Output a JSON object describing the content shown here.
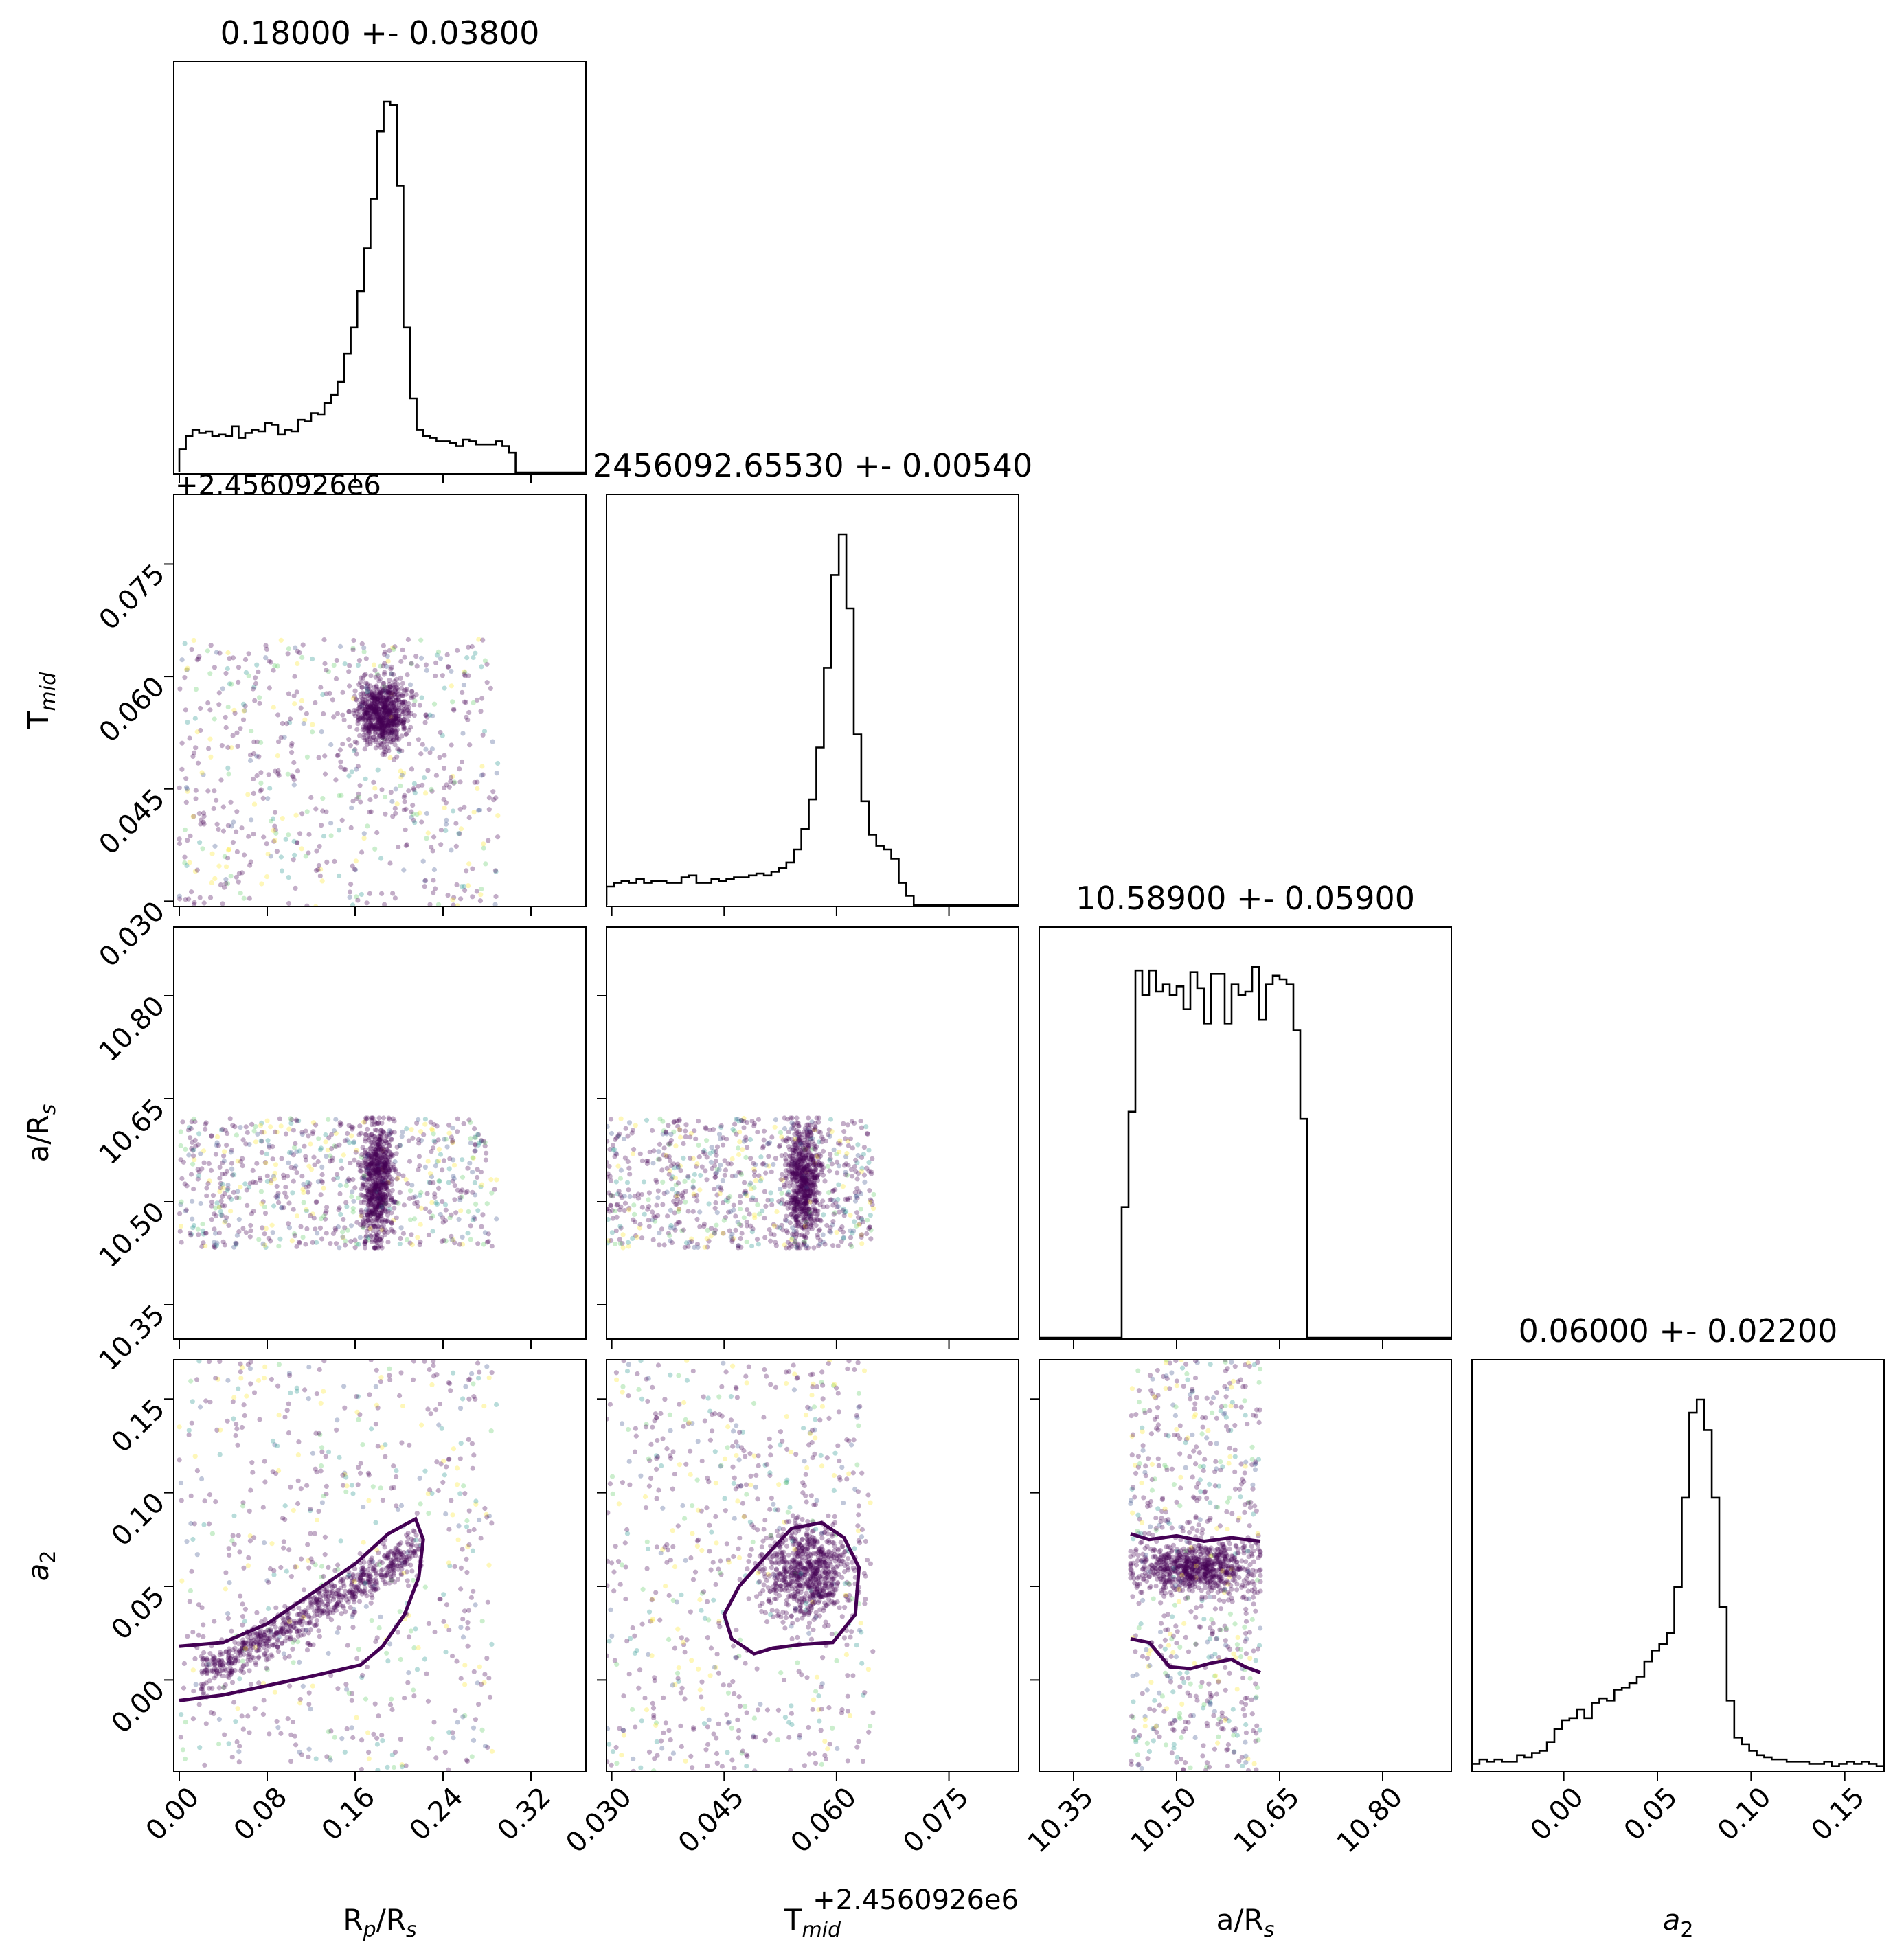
{
  "chart_data": {
    "type": "corner",
    "parameters": [
      {
        "key": "rp",
        "label_main": "R",
        "label_sub": "p",
        "label_tail": "/R",
        "label_sub2": "s",
        "range": [
          -0.005,
          0.37
        ],
        "ticks": [
          "0.00",
          "0.08",
          "0.16",
          "0.24",
          "0.32"
        ],
        "tick_values": [
          0.0,
          0.08,
          0.16,
          0.24,
          0.32
        ]
      },
      {
        "key": "tmid",
        "label_main": "T",
        "label_sub": "mid",
        "label_tail": "",
        "label_sub2": "",
        "offset_text": "+2.4560926e6",
        "range": [
          0.0293,
          0.0843
        ],
        "ticks": [
          "0.030",
          "0.045",
          "0.060",
          "0.075"
        ],
        "tick_values": [
          0.03,
          0.045,
          0.06,
          0.075
        ]
      },
      {
        "key": "ars",
        "label_main": "a/R",
        "label_sub": "s",
        "label_tail": "",
        "label_sub2": "",
        "range": [
          10.3,
          10.9
        ],
        "ticks": [
          "10.35",
          "10.50",
          "10.65",
          "10.80"
        ],
        "tick_values": [
          10.35,
          10.5,
          10.65,
          10.8
        ]
      },
      {
        "key": "a2",
        "label_main": "a",
        "label_sub": "2",
        "label_tail": "",
        "label_sub2": "",
        "italic": true,
        "range": [
          -0.049,
          0.171
        ],
        "ticks": [
          "0.00",
          "0.05",
          "0.10",
          "0.15"
        ],
        "tick_values": [
          0.0,
          0.05,
          0.1,
          0.15
        ]
      }
    ],
    "titles": [
      "0.18000 +- 0.03800",
      "2456092.65530 +- 0.00540",
      "10.58900 +- 0.05900",
      "0.06000 +- 0.02200"
    ],
    "diag_offset_text": "+2.4560926e6",
    "histograms": [
      {
        "edges_start": 0.0,
        "edges_step": 0.006,
        "heights": [
          14,
          22,
          26,
          24,
          25,
          22,
          23,
          22,
          28,
          21,
          24,
          26,
          25,
          30,
          29,
          23,
          26,
          25,
          32,
          31,
          36,
          35,
          42,
          47,
          55,
          72,
          88,
          110,
          136,
          166,
          207,
          225,
          223,
          174,
          88,
          45,
          26,
          22,
          21,
          19,
          19,
          18,
          16,
          20,
          19,
          17,
          17,
          17,
          19,
          16,
          12,
          0,
          0,
          0,
          0,
          0,
          0,
          0,
          0,
          0,
          0,
          0
        ]
      },
      {
        "edges_start": 0.0293,
        "edges_step": 0.001,
        "heights": [
          10,
          12,
          13,
          12,
          14,
          12,
          13,
          13,
          12,
          12,
          15,
          16,
          12,
          12,
          14,
          13,
          14,
          15,
          15,
          16,
          17,
          16,
          18,
          20,
          23,
          30,
          41,
          57,
          85,
          128,
          178,
          200,
          160,
          92,
          56,
          38,
          32,
          30,
          25,
          12,
          5,
          0,
          0,
          0,
          0,
          0,
          0,
          0,
          0,
          0,
          0,
          0,
          0,
          0,
          0
        ]
      },
      {
        "edges_start": 10.3,
        "edges_step": 0.01,
        "heights": [
          0,
          0,
          0,
          0,
          0,
          0,
          0,
          0,
          0,
          0,
          0,
          0,
          74,
          128,
          208,
          194,
          208,
          196,
          200,
          194,
          199,
          186,
          207,
          198,
          178,
          206,
          206,
          178,
          200,
          194,
          196,
          210,
          180,
          200,
          205,
          203,
          200,
          174,
          124,
          0,
          0,
          0,
          0,
          0,
          0,
          0,
          0,
          0,
          0,
          0,
          0,
          0,
          0,
          0,
          0,
          0,
          0,
          0,
          0,
          0
        ]
      },
      {
        "edges_start": -0.049,
        "edges_step": 0.004,
        "heights": [
          3,
          5,
          4,
          5,
          4,
          4,
          7,
          6,
          8,
          9,
          13,
          19,
          23,
          24,
          28,
          24,
          31,
          33,
          32,
          37,
          38,
          40,
          43,
          50,
          55,
          58,
          63,
          84,
          125,
          164,
          170,
          156,
          125,
          75,
          32,
          15,
          12,
          9,
          7,
          6,
          5,
          5,
          4,
          4,
          4,
          3,
          3,
          4,
          2,
          3,
          4,
          3,
          4,
          3,
          2,
          3
        ]
      }
    ],
    "scatter": [
      {
        "row": 1,
        "col": 0,
        "x_range": [
          0.0,
          0.29
        ],
        "y_range": [
          0.0293,
          0.065
        ],
        "core_x": [
          0.16,
          0.21
        ],
        "core_y": [
          0.0505,
          0.06
        ]
      },
      {
        "row": 2,
        "col": 0,
        "x_range": [
          0.0,
          0.29
        ],
        "y_range": [
          10.433,
          10.622
        ],
        "core_x": [
          0.165,
          0.195
        ],
        "core_y": [
          10.433,
          10.622
        ]
      },
      {
        "row": 2,
        "col": 1,
        "x_range": [
          0.0293,
          0.065
        ],
        "y_range": [
          10.433,
          10.622
        ],
        "core_x": [
          0.053,
          0.058
        ],
        "core_y": [
          10.433,
          10.622
        ]
      },
      {
        "row": 3,
        "col": 0,
        "x_range": [
          0.0,
          0.29
        ],
        "y_range": [
          -0.049,
          0.171
        ],
        "trend": true
      },
      {
        "row": 3,
        "col": 1,
        "x_range": [
          0.0293,
          0.065
        ],
        "y_range": [
          -0.049,
          0.171
        ],
        "core_x": [
          0.05,
          0.062
        ],
        "core_y": [
          0.03,
          0.085
        ]
      },
      {
        "row": 3,
        "col": 2,
        "x_range": [
          10.433,
          10.622
        ],
        "y_range": [
          -0.049,
          0.171
        ],
        "core_x": [
          10.433,
          10.622
        ],
        "core_y": [
          0.045,
          0.075
        ]
      }
    ],
    "contours": [
      {
        "row": 3,
        "col": 0,
        "points": [
          [
            0.0,
            0.018
          ],
          [
            0.04,
            0.02
          ],
          [
            0.08,
            0.03
          ],
          [
            0.12,
            0.046
          ],
          [
            0.16,
            0.062
          ],
          [
            0.19,
            0.078
          ],
          [
            0.215,
            0.086
          ],
          [
            0.222,
            0.075
          ],
          [
            0.218,
            0.055
          ],
          [
            0.205,
            0.035
          ],
          [
            0.185,
            0.018
          ],
          [
            0.165,
            0.008
          ],
          [
            0.12,
            0.002
          ],
          [
            0.08,
            -0.003
          ],
          [
            0.04,
            -0.008
          ],
          [
            0.0,
            -0.011
          ]
        ],
        "closed": false
      },
      {
        "row": 3,
        "col": 1,
        "points": [
          [
            0.045,
            0.035
          ],
          [
            0.047,
            0.05
          ],
          [
            0.051,
            0.068
          ],
          [
            0.054,
            0.081
          ],
          [
            0.058,
            0.084
          ],
          [
            0.061,
            0.076
          ],
          [
            0.063,
            0.06
          ],
          [
            0.0625,
            0.035
          ],
          [
            0.0595,
            0.02
          ],
          [
            0.0555,
            0.019
          ],
          [
            0.0515,
            0.017
          ],
          [
            0.049,
            0.014
          ],
          [
            0.046,
            0.022
          ]
        ],
        "closed": true
      },
      {
        "row": 3,
        "col": 2,
        "points": [
          [
            10.433,
            0.078
          ],
          [
            10.46,
            0.075
          ],
          [
            10.5,
            0.077
          ],
          [
            10.54,
            0.074
          ],
          [
            10.58,
            0.076
          ],
          [
            10.622,
            0.074
          ]
        ],
        "closed": false
      },
      {
        "row": 3,
        "col": 2,
        "points": [
          [
            10.433,
            0.022
          ],
          [
            10.46,
            0.02
          ],
          [
            10.49,
            0.007
          ],
          [
            10.52,
            0.006
          ],
          [
            10.55,
            0.009
          ],
          [
            10.58,
            0.011
          ],
          [
            10.6,
            0.007
          ],
          [
            10.622,
            0.004
          ]
        ],
        "closed": false
      }
    ],
    "colors": {
      "contour": "#440154",
      "points": [
        "#440154",
        "#440154",
        "#440154",
        "#440154",
        "#440154",
        "#3b528b",
        "#21918c",
        "#5ec962",
        "#fde725"
      ]
    }
  }
}
